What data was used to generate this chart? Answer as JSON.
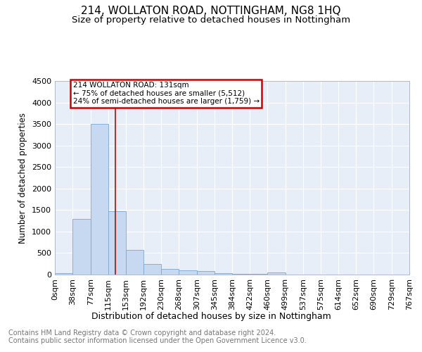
{
  "title": "214, WOLLATON ROAD, NOTTINGHAM, NG8 1HQ",
  "subtitle": "Size of property relative to detached houses in Nottingham",
  "xlabel": "Distribution of detached houses by size in Nottingham",
  "ylabel": "Number of detached properties",
  "bar_color": "#c6d9f0",
  "bar_edge_color": "#7ba7d4",
  "background_color": "#ffffff",
  "plot_bg_color": "#e8eef8",
  "grid_color": "#ffffff",
  "annotation_text": "214 WOLLATON ROAD: 131sqm\n← 75% of detached houses are smaller (5,512)\n24% of semi-detached houses are larger (1,759) →",
  "vline_x": 131,
  "vline_color": "#cc0000",
  "footer_text": "Contains HM Land Registry data © Crown copyright and database right 2024.\nContains public sector information licensed under the Open Government Licence v3.0.",
  "bin_edges": [
    0,
    38,
    77,
    115,
    153,
    192,
    230,
    268,
    307,
    345,
    384,
    422,
    460,
    499,
    537,
    575,
    614,
    652,
    690,
    729,
    767
  ],
  "bar_heights": [
    30,
    1290,
    3500,
    1470,
    575,
    250,
    130,
    100,
    75,
    40,
    15,
    10,
    50,
    0,
    0,
    0,
    0,
    0,
    0,
    0
  ],
  "ylim": [
    0,
    4500
  ],
  "yticks": [
    0,
    500,
    1000,
    1500,
    2000,
    2500,
    3000,
    3500,
    4000,
    4500
  ],
  "title_fontsize": 11,
  "subtitle_fontsize": 9.5,
  "xlabel_fontsize": 9,
  "ylabel_fontsize": 8.5,
  "tick_fontsize": 8,
  "footer_fontsize": 7
}
